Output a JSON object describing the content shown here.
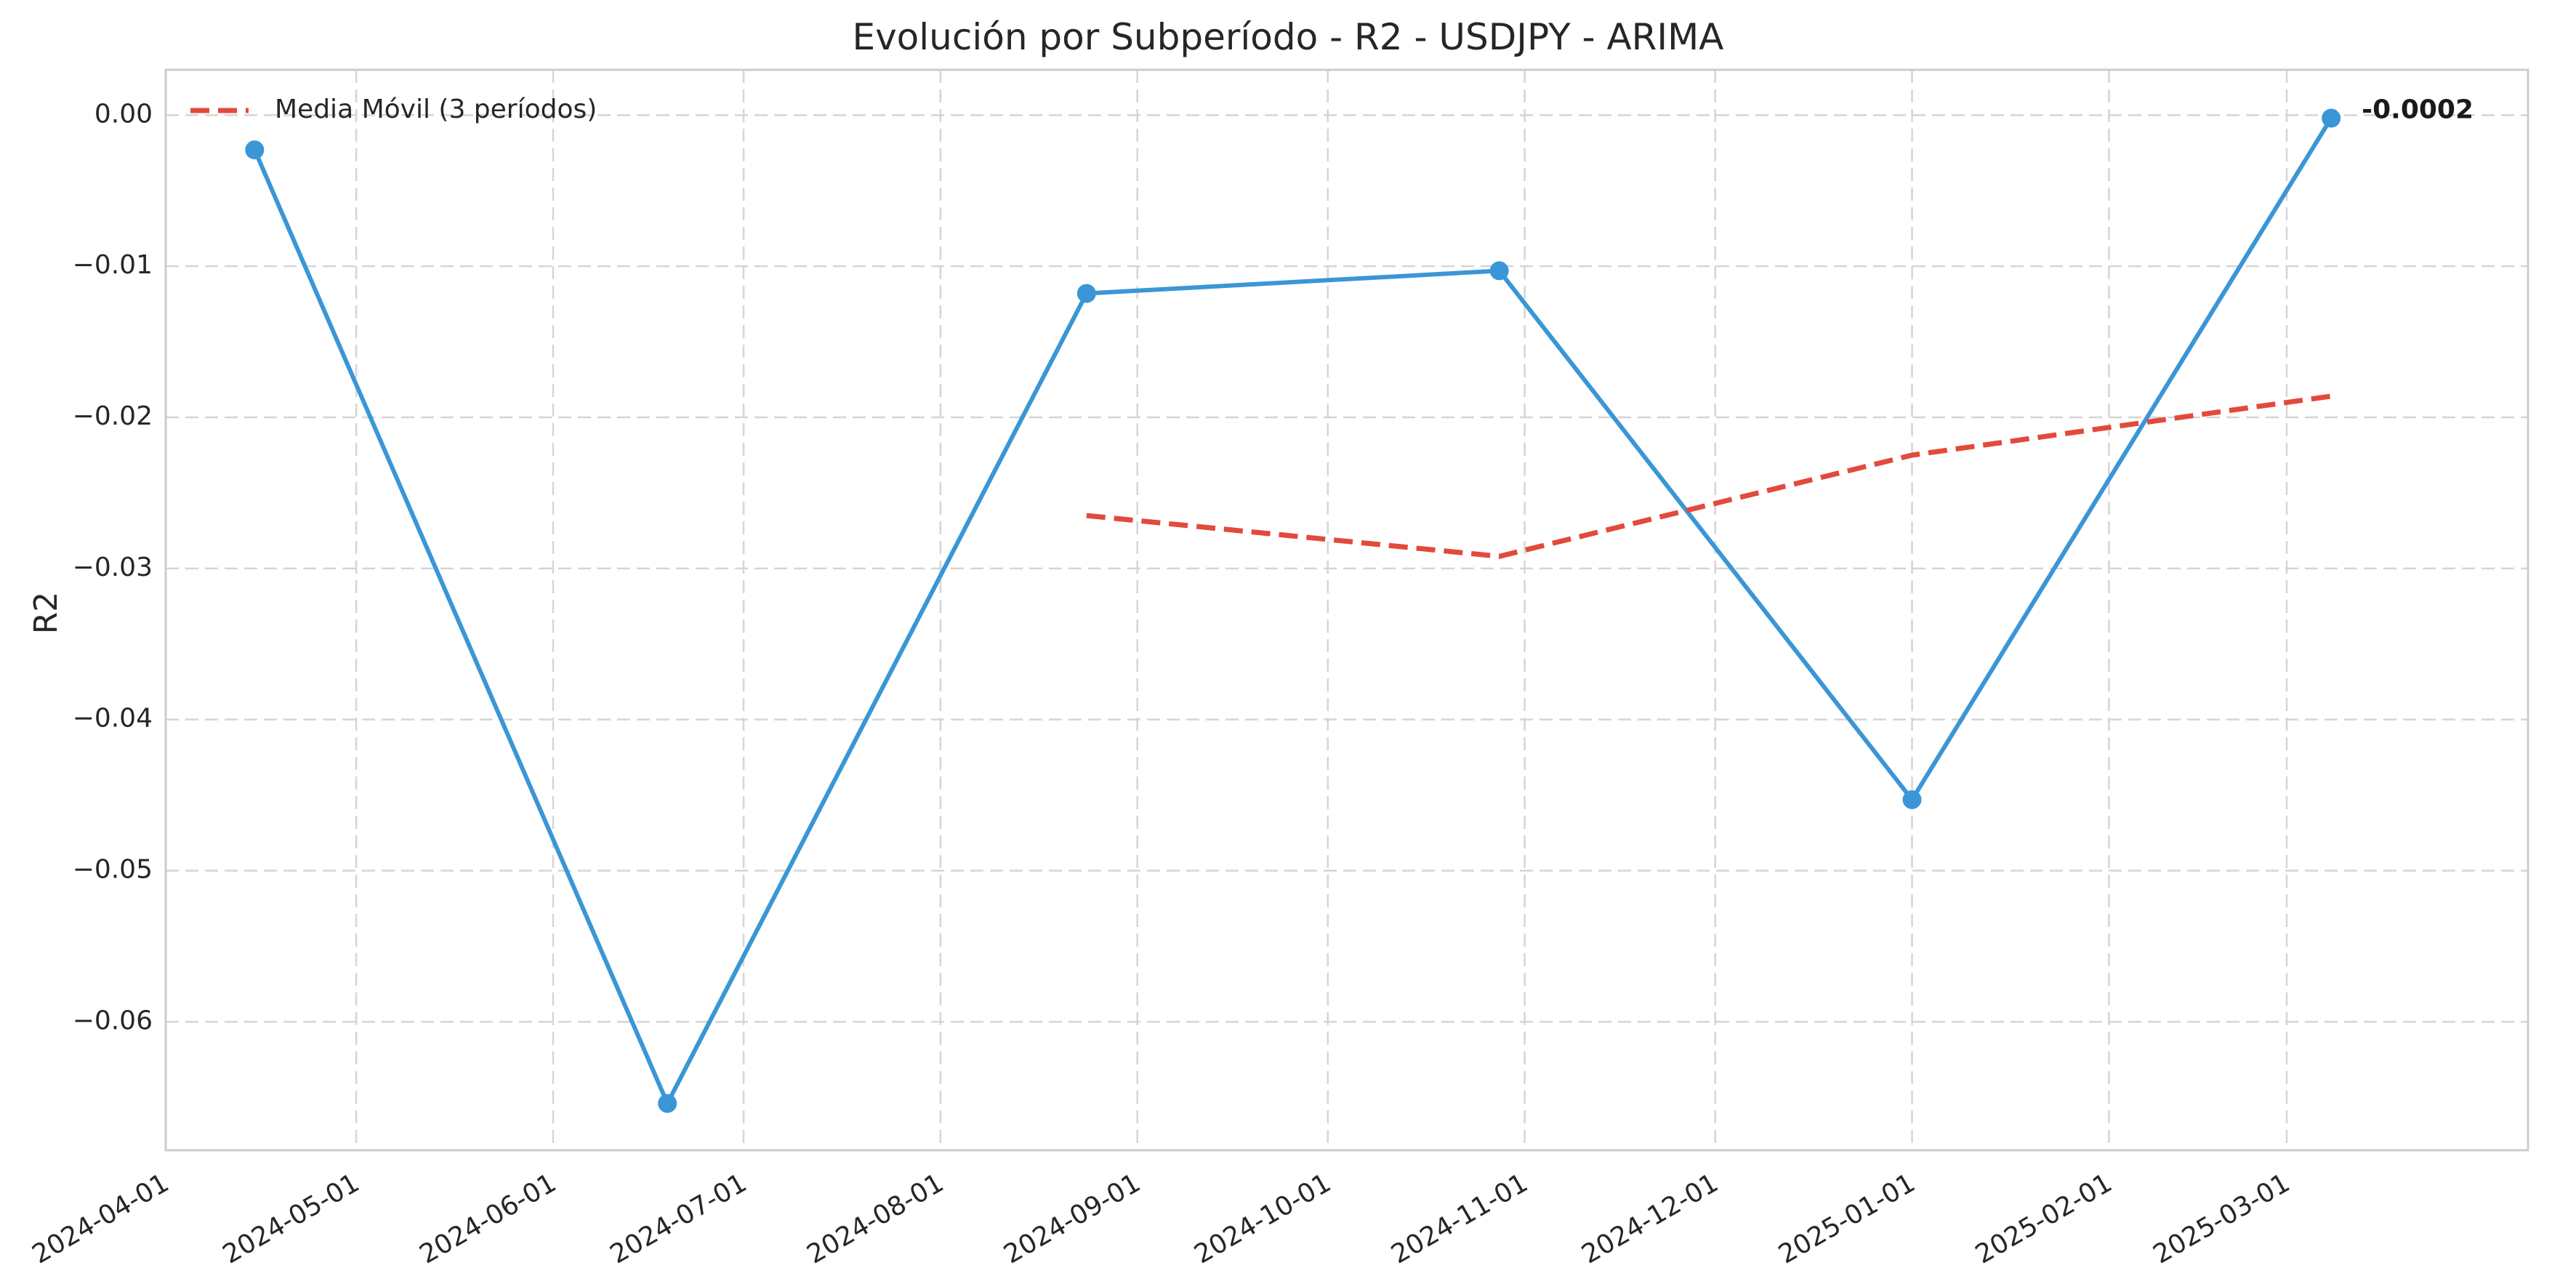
{
  "chart_data": {
    "type": "line",
    "title": "Evolución por Subperíodo - R2 - USDJPY - ARIMA",
    "xlabel": "",
    "ylabel": "R2",
    "xlim": [
      "2024-04-01",
      "2025-04-08"
    ],
    "ylim": [
      -0.0685,
      0.003
    ],
    "x_ticks": [
      "2024-04-01",
      "2024-05-01",
      "2024-06-01",
      "2024-07-01",
      "2024-08-01",
      "2024-09-01",
      "2024-10-01",
      "2024-11-01",
      "2024-12-01",
      "2025-01-01",
      "2025-02-01",
      "2025-03-01"
    ],
    "y_ticks": [
      0.0,
      -0.01,
      -0.02,
      -0.03,
      -0.04,
      -0.05,
      -0.06
    ],
    "y_tick_labels": [
      "0.00",
      "−0.01",
      "−0.02",
      "−0.03",
      "−0.04",
      "−0.05",
      "−0.06"
    ],
    "grid": true,
    "legend_placement": "top-left",
    "series": [
      {
        "name": "",
        "color": "#3a96d6",
        "style": "solid",
        "markers": true,
        "x": [
          "2024-04-15",
          "2024-06-19",
          "2024-08-24",
          "2024-10-28",
          "2025-01-01",
          "2025-03-08"
        ],
        "y": [
          -0.0023,
          -0.0654,
          -0.0118,
          -0.0103,
          -0.0453,
          -0.0002
        ]
      },
      {
        "name": "Media Móvil (3 períodos)",
        "color": "#e24a3b",
        "style": "dashed",
        "markers": false,
        "x": [
          "2024-08-24",
          "2024-10-28",
          "2025-01-01",
          "2025-03-08"
        ],
        "y": [
          -0.0265,
          -0.0292,
          -0.0225,
          -0.0186
        ]
      }
    ],
    "annotations": [
      {
        "text": "-0.0002",
        "x": "2025-03-08",
        "y": -0.0002
      }
    ]
  }
}
